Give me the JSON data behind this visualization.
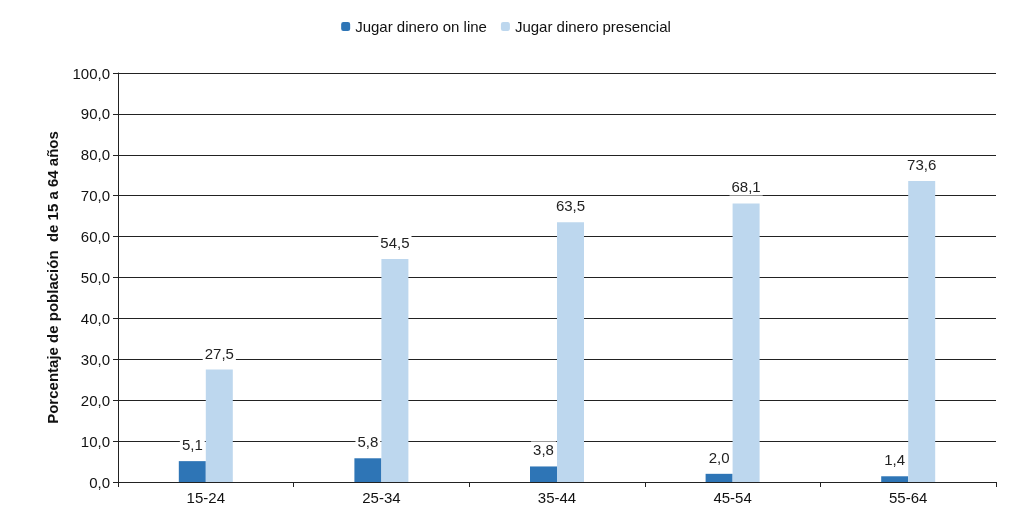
{
  "chart_data": {
    "type": "bar",
    "ylabel": "Porcentaje de población  de 15 a 64 años",
    "categories": [
      "15-24",
      "25-34",
      "35-44",
      "45-54",
      "55-64"
    ],
    "series": [
      {
        "name": "Jugar dinero on line",
        "color": "#2e75b6",
        "values": [
          5.1,
          5.8,
          3.8,
          2.0,
          1.4
        ],
        "value_labels": [
          "5,1",
          "5,8",
          "3,8",
          "2,0",
          "1,4"
        ]
      },
      {
        "name": "Jugar dinero presencial",
        "color": "#bdd7ee",
        "values": [
          27.5,
          54.5,
          63.5,
          68.1,
          73.6
        ],
        "value_labels": [
          "27,5",
          "54,5",
          "63,5",
          "68,1",
          "73,6"
        ]
      }
    ],
    "ylim": [
      0,
      100
    ],
    "yticks": [
      {
        "value": 0,
        "label": "0,0"
      },
      {
        "value": 10,
        "label": "10,0"
      },
      {
        "value": 20,
        "label": "20,0"
      },
      {
        "value": 30,
        "label": "30,0"
      },
      {
        "value": 40,
        "label": "40,0"
      },
      {
        "value": 50,
        "label": "50,0"
      },
      {
        "value": 60,
        "label": "60,0"
      },
      {
        "value": 70,
        "label": "70,0"
      },
      {
        "value": 80,
        "label": "80,0"
      },
      {
        "value": 90,
        "label": "90,0"
      },
      {
        "value": 100,
        "label": "100,0"
      }
    ],
    "grid": "y",
    "legend": "top"
  }
}
